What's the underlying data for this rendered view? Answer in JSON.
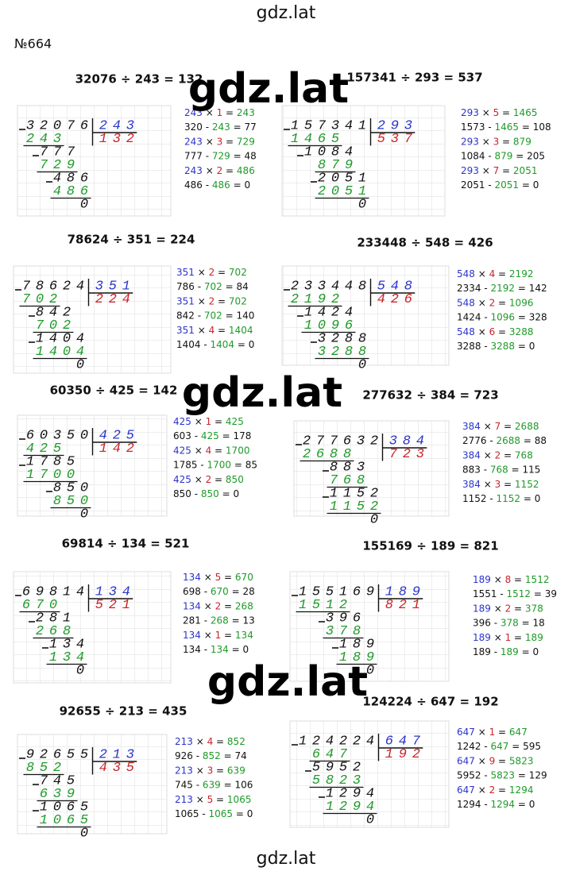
{
  "header": {
    "site": "gdz.lat",
    "number": "№664"
  },
  "watermarks": [
    "gdz.lat",
    "gdz.lat",
    "gdz.lat"
  ],
  "problems": [
    {
      "title": "32076 ÷ 243 = 132",
      "dividend": "32076",
      "divisor": "243",
      "quotient": "132",
      "rows": [
        "243",
        "777",
        "729",
        "486",
        "486",
        "0"
      ],
      "notes": [
        "243 × 1 = 243",
        "320 - 243 = 77",
        "243 × 3 = 729",
        "777 - 729 = 48",
        "243 × 2 = 486",
        "486 - 486 = 0"
      ]
    },
    {
      "title": "157341 ÷ 293 = 537",
      "dividend": "157341",
      "divisor": "293",
      "quotient": "537",
      "rows": [
        "1465",
        "1084",
        "879",
        "2051",
        "2051",
        "0"
      ],
      "notes": [
        "293 × 5 = 1465",
        "1573 - 1465 = 108",
        "293 × 3 = 879",
        "1084 - 879 = 205",
        "293 × 7 = 2051",
        "2051 - 2051 = 0"
      ]
    },
    {
      "title": "78624 ÷ 351 = 224",
      "dividend": "78624",
      "divisor": "351",
      "quotient": "224",
      "rows": [
        "702",
        "842",
        "702",
        "1404",
        "1404",
        "0"
      ],
      "notes": [
        "351 × 2 = 702",
        "786 - 702 = 84",
        "351 × 2 = 702",
        "842 - 702 = 140",
        "351 × 4 = 1404",
        "1404 - 1404 = 0"
      ]
    },
    {
      "title": "233448 ÷ 548 = 426",
      "dividend": "233448",
      "divisor": "548",
      "quotient": "426",
      "rows": [
        "2192",
        "1424",
        "1096",
        "3288",
        "3288",
        "0"
      ],
      "notes": [
        "548 × 4 = 2192",
        "2334 - 2192 = 142",
        "548 × 2 = 1096",
        "1424 - 1096 = 328",
        "548 × 6 = 3288",
        "3288 - 3288 = 0"
      ]
    },
    {
      "title": "60350 ÷ 425 = 142",
      "dividend": "60350",
      "divisor": "425",
      "quotient": "142",
      "rows": [
        "425",
        "1785",
        "1700",
        "850",
        "850",
        "0"
      ],
      "notes": [
        "425 × 1 = 425",
        "603 - 425 = 178",
        "425 × 4 = 1700",
        "1785 - 1700 = 85",
        "425 × 2 = 850",
        "850 - 850 = 0"
      ]
    },
    {
      "title": "277632 ÷ 384 = 723",
      "dividend": "277632",
      "divisor": "384",
      "quotient": "723",
      "rows": [
        "2688",
        "883",
        "768",
        "1152",
        "1152",
        "0"
      ],
      "notes": [
        "384 × 7 = 2688",
        "2776 - 2688 = 88",
        "384 × 2 = 768",
        "883 - 768 = 115",
        "384 × 3 = 1152",
        "1152 - 1152 = 0"
      ]
    },
    {
      "title": "69814 ÷ 134 = 521",
      "dividend": "69814",
      "divisor": "134",
      "quotient": "521",
      "rows": [
        "670",
        "281",
        "268",
        "134",
        "134",
        "0"
      ],
      "notes": [
        "134 × 5 = 670",
        "698 - 670 = 28",
        "134 × 2 = 268",
        "281 - 268 = 13",
        "134 × 1 = 134",
        "134 - 134 = 0"
      ]
    },
    {
      "title": "155169 ÷ 189 = 821",
      "dividend": "155169",
      "divisor": "189",
      "quotient": "821",
      "rows": [
        "1512",
        "396",
        "378",
        "189",
        "189",
        "0"
      ],
      "notes": [
        "189 × 8 = 1512",
        "1551 - 1512 = 39",
        "189 × 2 = 378",
        "396 - 378 = 18",
        "189 × 1 = 189",
        "189 - 189 = 0"
      ]
    },
    {
      "title": "92655 ÷ 213 = 435",
      "dividend": "92655",
      "divisor": "213",
      "quotient": "435",
      "rows": [
        "852",
        "745",
        "639",
        "1065",
        "1065",
        "0"
      ],
      "notes": [
        "213 × 4 = 852",
        "926 - 852 = 74",
        "213 × 3 = 639",
        "745 - 639 = 106",
        "213 × 5 = 1065",
        "1065 - 1065 = 0"
      ]
    },
    {
      "title": "124224 ÷ 647 = 192",
      "dividend": "124224",
      "divisor": "647",
      "quotient": "192",
      "rows": [
        "647",
        "5952",
        "5823",
        "1294",
        "1294",
        "0"
      ],
      "notes": [
        "647 × 1 = 647",
        "1242 - 647 = 595",
        "647 × 9 = 5823",
        "5952 - 5823 = 129",
        "647 × 2 = 1294",
        "1294 - 1294 = 0"
      ]
    }
  ],
  "footer": "gdz.lat"
}
